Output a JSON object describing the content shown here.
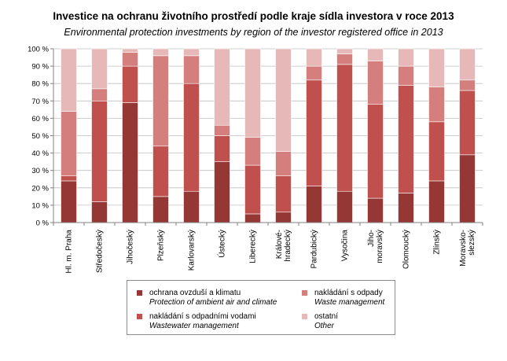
{
  "title_cz": "Investice na ochranu životního prostředí podle kraje sídla investora v roce 2013",
  "title_en": "Environmental protection investments by region of the investor registered office in 2013",
  "chart_data": {
    "type": "bar",
    "stacked": true,
    "ylim": [
      0,
      100
    ],
    "yticks": [
      "0 %",
      "10 %",
      "20 %",
      "30 %",
      "40 %",
      "50 %",
      "60 %",
      "70 %",
      "80 %",
      "90 %",
      "100 %"
    ],
    "categories": [
      [
        "Hl. m. Praha"
      ],
      [
        "Středočeský"
      ],
      [
        "Jihočeský"
      ],
      [
        "Plzeňský"
      ],
      [
        "Karlovarský"
      ],
      [
        "Ústecký"
      ],
      [
        "Liberecký"
      ],
      [
        "Králové-",
        "hradecký"
      ],
      [
        "Pardubický"
      ],
      [
        "Vysočina"
      ],
      [
        "Jiho-",
        "moravský"
      ],
      [
        "Olomoucký"
      ],
      [
        "Zlínský"
      ],
      [
        "Moravsko-",
        "slezský"
      ]
    ],
    "series": [
      {
        "name_cz": "ochrana ovzduší a klimatu",
        "name_en": "Protection of ambient air and climate",
        "color": "#953735",
        "values": [
          24,
          12,
          69,
          15,
          18,
          35,
          5,
          6,
          21,
          18,
          14,
          17,
          24,
          39
        ]
      },
      {
        "name_cz": "nakládání s odpadními vodami",
        "name_en": "Wastewater management",
        "color": "#c0504d",
        "values": [
          3,
          58,
          21,
          29,
          62,
          15,
          28,
          21,
          61,
          73,
          54,
          62,
          34,
          37
        ]
      },
      {
        "name_cz": "nakládání s odpady",
        "name_en": "Waste management",
        "color": "#d47f7d",
        "values": [
          37,
          7,
          8,
          52,
          16,
          6,
          16,
          14,
          8,
          6,
          25,
          11,
          20,
          6
        ]
      },
      {
        "name_cz": "ostatní",
        "name_en": "Other",
        "color": "#e6b9b8",
        "values": [
          36,
          23,
          2,
          4,
          4,
          44,
          51,
          59,
          10,
          3,
          7,
          10,
          22,
          18
        ]
      }
    ],
    "legend_position": "bottom"
  }
}
